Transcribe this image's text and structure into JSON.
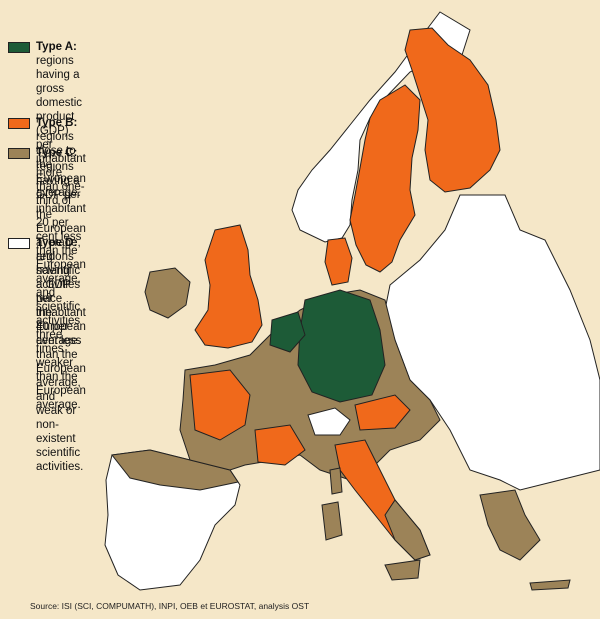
{
  "colors": {
    "background": "#f5e7c8",
    "type_a": "#1d5b37",
    "type_b": "#f0691b",
    "type_c": "#9c8358",
    "type_d": "#ffffff",
    "border": "#222222"
  },
  "legend": [
    {
      "key": "a",
      "label": "Type A:",
      "lines": [
        "regions having a gross domestic product",
        "(GDP) per inhabitant more than one-third of the",
        "European average, and scientific activities twice",
        "the European average."
      ]
    },
    {
      "key": "b",
      "label": "Type B:",
      "lines": [
        "regions close to the European average."
      ]
    },
    {
      "key": "c",
      "label": "Type C:",
      "lines": [
        "regions having a GDP per inhabitant",
        "20 per cent less than the European average,",
        " and scientific activities three times",
        "weaker than the European",
        "average."
      ]
    },
    {
      "key": "d",
      "label": "Type D:",
      "lines": [
        "regions having",
        "a GDP per inhabitant",
        "40 per cent less",
        "than the European",
        " average, and",
        "weak or",
        "non-existent",
        "scientific activities."
      ]
    }
  ],
  "source": "Source: ISI (SCI, COMPUMATH), INPI, OEB et EUROSTAT, analysis OST"
}
